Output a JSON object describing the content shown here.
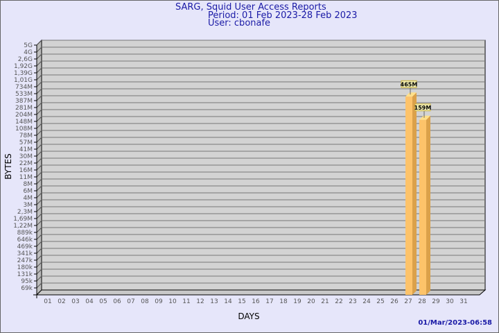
{
  "header": {
    "title": "SARG, Squid User Access Reports",
    "period": "Period: 01 Feb 2023-28 Feb 2023",
    "user": "User: cbonafe"
  },
  "timestamp": "01/Mar/2023-06:58",
  "chart_data": {
    "type": "bar",
    "title": "SARG, Squid User Access Reports",
    "xlabel": "DAYS",
    "ylabel": "BYTES",
    "yscale": "log",
    "grid": true,
    "categories": [
      "01",
      "02",
      "03",
      "04",
      "05",
      "06",
      "07",
      "08",
      "09",
      "10",
      "11",
      "12",
      "13",
      "14",
      "15",
      "16",
      "17",
      "18",
      "19",
      "20",
      "21",
      "22",
      "23",
      "24",
      "25",
      "26",
      "27",
      "28",
      "29",
      "30",
      "31"
    ],
    "y_ticks": [
      "5G",
      "4G",
      "2,6G",
      "1,92G",
      "1,39G",
      "1,01G",
      "734M",
      "533M",
      "387M",
      "281M",
      "204M",
      "148M",
      "108M",
      "78M",
      "57M",
      "41M",
      "30M",
      "22M",
      "16M",
      "11M",
      "8M",
      "6M",
      "4M",
      "3M",
      "2,3M",
      "1,69M",
      "1,22M",
      "889k",
      "646k",
      "469k",
      "341k",
      "247k",
      "180k",
      "131k",
      "95k",
      "69k"
    ],
    "series": [
      {
        "values": [
          {
            "day": "27",
            "bytes": 465000000,
            "label": "465M"
          },
          {
            "day": "28",
            "bytes": 159000000,
            "label": "159M"
          }
        ]
      }
    ],
    "colors": {
      "bar_front": "#fdc36a",
      "bar_side": "#dba14a",
      "bar_top": "#ffe08a",
      "wall": "#d3d3d3",
      "label_bg": "#f0ecb0"
    }
  }
}
